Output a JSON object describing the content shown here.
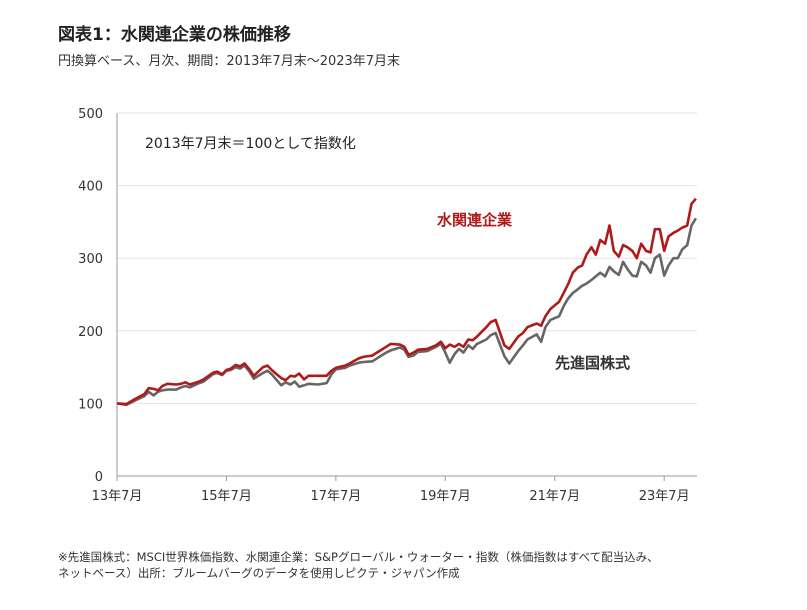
{
  "header": {
    "title": "図表1：水関連企業の株価推移",
    "subtitle": "円換算ベース、月次、期間：2013年7月末～2023年7月末"
  },
  "footnote": {
    "line1": "※先進国株式：MSCI世界株価指数、水関連企業：S&Pグローバル・ウォーター・指数（株価指数はすべて配当込み、",
    "line2": "ネットベース）出所：ブルームバーグのデータを使用しピクテ・ジャパン作成"
  },
  "chart_data": {
    "type": "line",
    "annotation": "2013年7月末＝100として指数化",
    "ylim": [
      0,
      500
    ],
    "yticks": [
      0,
      100,
      200,
      300,
      400,
      500
    ],
    "xlim": [
      2013.5,
      2023.5
    ],
    "xticks": [
      {
        "x": 2013.5,
        "label": "13年7月"
      },
      {
        "x": 2015.5,
        "label": "15年7月"
      },
      {
        "x": 2017.5,
        "label": "17年7月"
      },
      {
        "x": 2019.5,
        "label": "19年7月"
      },
      {
        "x": 2021.5,
        "label": "21年7月"
      },
      {
        "x": 2023.5,
        "label": "23年7月"
      }
    ],
    "grid": true,
    "series": [
      {
        "name": "水関連企業",
        "color": "#b01a1a",
        "label_position": "upper",
        "points": [
          [
            2013.5,
            100
          ],
          [
            2013.67,
            99
          ],
          [
            2013.83,
            106
          ],
          [
            2014.0,
            113
          ],
          [
            2014.08,
            121
          ],
          [
            2014.17,
            120
          ],
          [
            2014.25,
            118
          ],
          [
            2014.33,
            124
          ],
          [
            2014.42,
            127
          ],
          [
            2014.58,
            126
          ],
          [
            2014.67,
            127
          ],
          [
            2014.75,
            129
          ],
          [
            2014.83,
            126
          ],
          [
            2015.0,
            130
          ],
          [
            2015.08,
            133
          ],
          [
            2015.25,
            142
          ],
          [
            2015.33,
            144
          ],
          [
            2015.42,
            140
          ],
          [
            2015.5,
            146
          ],
          [
            2015.58,
            148
          ],
          [
            2015.67,
            153
          ],
          [
            2015.75,
            151
          ],
          [
            2015.83,
            155
          ],
          [
            2015.92,
            147
          ],
          [
            2016.0,
            138
          ],
          [
            2016.17,
            150
          ],
          [
            2016.25,
            152
          ],
          [
            2016.33,
            146
          ],
          [
            2016.42,
            140
          ],
          [
            2016.5,
            135
          ],
          [
            2016.58,
            132
          ],
          [
            2016.67,
            138
          ],
          [
            2016.75,
            137
          ],
          [
            2016.83,
            141
          ],
          [
            2016.92,
            133
          ],
          [
            2017.0,
            138
          ],
          [
            2017.17,
            138
          ],
          [
            2017.33,
            138
          ],
          [
            2017.42,
            145
          ],
          [
            2017.5,
            149
          ],
          [
            2017.67,
            152
          ],
          [
            2017.75,
            155
          ],
          [
            2017.92,
            162
          ],
          [
            2018.0,
            164
          ],
          [
            2018.17,
            166
          ],
          [
            2018.25,
            170
          ],
          [
            2018.42,
            178
          ],
          [
            2018.5,
            182
          ],
          [
            2018.67,
            181
          ],
          [
            2018.75,
            178
          ],
          [
            2018.83,
            167
          ],
          [
            2018.92,
            170
          ],
          [
            2019.0,
            174
          ],
          [
            2019.17,
            175
          ],
          [
            2019.33,
            180
          ],
          [
            2019.42,
            185
          ],
          [
            2019.5,
            176
          ],
          [
            2019.58,
            181
          ],
          [
            2019.67,
            178
          ],
          [
            2019.75,
            182
          ],
          [
            2019.83,
            178
          ],
          [
            2019.92,
            188
          ],
          [
            2020.0,
            187
          ],
          [
            2020.08,
            192
          ],
          [
            2020.25,
            205
          ],
          [
            2020.33,
            212
          ],
          [
            2020.42,
            215
          ],
          [
            2020.58,
            180
          ],
          [
            2020.67,
            175
          ],
          [
            2020.83,
            192
          ],
          [
            2020.92,
            197
          ],
          [
            2021.0,
            205
          ],
          [
            2021.17,
            210
          ],
          [
            2021.25,
            207
          ],
          [
            2021.33,
            220
          ],
          [
            2021.42,
            230
          ],
          [
            2021.58,
            240
          ],
          [
            2021.67,
            253
          ],
          [
            2021.75,
            265
          ],
          [
            2021.83,
            280
          ],
          [
            2021.92,
            287
          ],
          [
            2022.0,
            290
          ],
          [
            2022.08,
            305
          ],
          [
            2022.17,
            315
          ],
          [
            2022.25,
            305
          ],
          [
            2022.33,
            325
          ],
          [
            2022.42,
            320
          ],
          [
            2022.5,
            345
          ],
          [
            2022.58,
            310
          ],
          [
            2022.67,
            302
          ],
          [
            2022.75,
            318
          ],
          [
            2022.83,
            315
          ],
          [
            2022.92,
            310
          ],
          [
            2023.0,
            300
          ],
          [
            2023.08,
            320
          ],
          [
            2023.17,
            310
          ],
          [
            2023.25,
            308
          ],
          [
            2023.33,
            340
          ],
          [
            2023.42,
            340
          ],
          [
            2023.5,
            310
          ],
          [
            2023.58,
            330
          ],
          [
            2023.67,
            335
          ],
          [
            2023.75,
            338
          ],
          [
            2023.83,
            342
          ],
          [
            2023.92,
            345
          ],
          [
            2024.0,
            375
          ],
          [
            2024.08,
            382
          ]
        ]
      },
      {
        "name": "先進国株式",
        "color": "#666666",
        "label_position": "lower",
        "points": [
          [
            2013.5,
            100
          ],
          [
            2013.67,
            98
          ],
          [
            2013.83,
            104
          ],
          [
            2014.0,
            110
          ],
          [
            2014.08,
            116
          ],
          [
            2014.17,
            111
          ],
          [
            2014.25,
            116
          ],
          [
            2014.33,
            118
          ],
          [
            2014.42,
            119
          ],
          [
            2014.58,
            119
          ],
          [
            2014.67,
            122
          ],
          [
            2014.75,
            124
          ],
          [
            2014.83,
            122
          ],
          [
            2015.0,
            128
          ],
          [
            2015.08,
            130
          ],
          [
            2015.25,
            140
          ],
          [
            2015.33,
            142
          ],
          [
            2015.42,
            139
          ],
          [
            2015.5,
            145
          ],
          [
            2015.58,
            146
          ],
          [
            2015.67,
            150
          ],
          [
            2015.75,
            148
          ],
          [
            2015.83,
            152
          ],
          [
            2015.92,
            144
          ],
          [
            2016.0,
            134
          ],
          [
            2016.17,
            142
          ],
          [
            2016.25,
            145
          ],
          [
            2016.33,
            140
          ],
          [
            2016.42,
            132
          ],
          [
            2016.5,
            125
          ],
          [
            2016.58,
            129
          ],
          [
            2016.67,
            126
          ],
          [
            2016.75,
            130
          ],
          [
            2016.83,
            123
          ],
          [
            2016.92,
            125
          ],
          [
            2017.0,
            127
          ],
          [
            2017.17,
            126
          ],
          [
            2017.33,
            128
          ],
          [
            2017.42,
            140
          ],
          [
            2017.5,
            147
          ],
          [
            2017.67,
            149
          ],
          [
            2017.75,
            152
          ],
          [
            2017.92,
            156
          ],
          [
            2018.0,
            157
          ],
          [
            2018.17,
            158
          ],
          [
            2018.25,
            162
          ],
          [
            2018.42,
            170
          ],
          [
            2018.5,
            173
          ],
          [
            2018.67,
            177
          ],
          [
            2018.75,
            174
          ],
          [
            2018.83,
            164
          ],
          [
            2018.92,
            166
          ],
          [
            2019.0,
            171
          ],
          [
            2019.17,
            172
          ],
          [
            2019.33,
            178
          ],
          [
            2019.42,
            182
          ],
          [
            2019.5,
            170
          ],
          [
            2019.58,
            156
          ],
          [
            2019.67,
            168
          ],
          [
            2019.75,
            175
          ],
          [
            2019.83,
            170
          ],
          [
            2019.92,
            180
          ],
          [
            2020.0,
            175
          ],
          [
            2020.08,
            182
          ],
          [
            2020.25,
            188
          ],
          [
            2020.33,
            194
          ],
          [
            2020.42,
            197
          ],
          [
            2020.58,
            165
          ],
          [
            2020.67,
            155
          ],
          [
            2020.83,
            172
          ],
          [
            2020.92,
            180
          ],
          [
            2021.0,
            188
          ],
          [
            2021.17,
            195
          ],
          [
            2021.25,
            185
          ],
          [
            2021.33,
            205
          ],
          [
            2021.42,
            215
          ],
          [
            2021.58,
            220
          ],
          [
            2021.67,
            235
          ],
          [
            2021.75,
            245
          ],
          [
            2021.83,
            252
          ],
          [
            2021.92,
            257
          ],
          [
            2022.0,
            262
          ],
          [
            2022.08,
            265
          ],
          [
            2022.17,
            270
          ],
          [
            2022.25,
            275
          ],
          [
            2022.33,
            280
          ],
          [
            2022.42,
            275
          ],
          [
            2022.5,
            288
          ],
          [
            2022.58,
            282
          ],
          [
            2022.67,
            277
          ],
          [
            2022.75,
            295
          ],
          [
            2022.83,
            285
          ],
          [
            2022.92,
            276
          ],
          [
            2023.0,
            275
          ],
          [
            2023.08,
            295
          ],
          [
            2023.17,
            290
          ],
          [
            2023.25,
            280
          ],
          [
            2023.33,
            300
          ],
          [
            2023.42,
            305
          ],
          [
            2023.5,
            276
          ],
          [
            2023.58,
            290
          ],
          [
            2023.67,
            300
          ],
          [
            2023.75,
            300
          ],
          [
            2023.83,
            312
          ],
          [
            2023.92,
            318
          ],
          [
            2024.0,
            345
          ],
          [
            2024.08,
            355
          ]
        ]
      }
    ]
  }
}
